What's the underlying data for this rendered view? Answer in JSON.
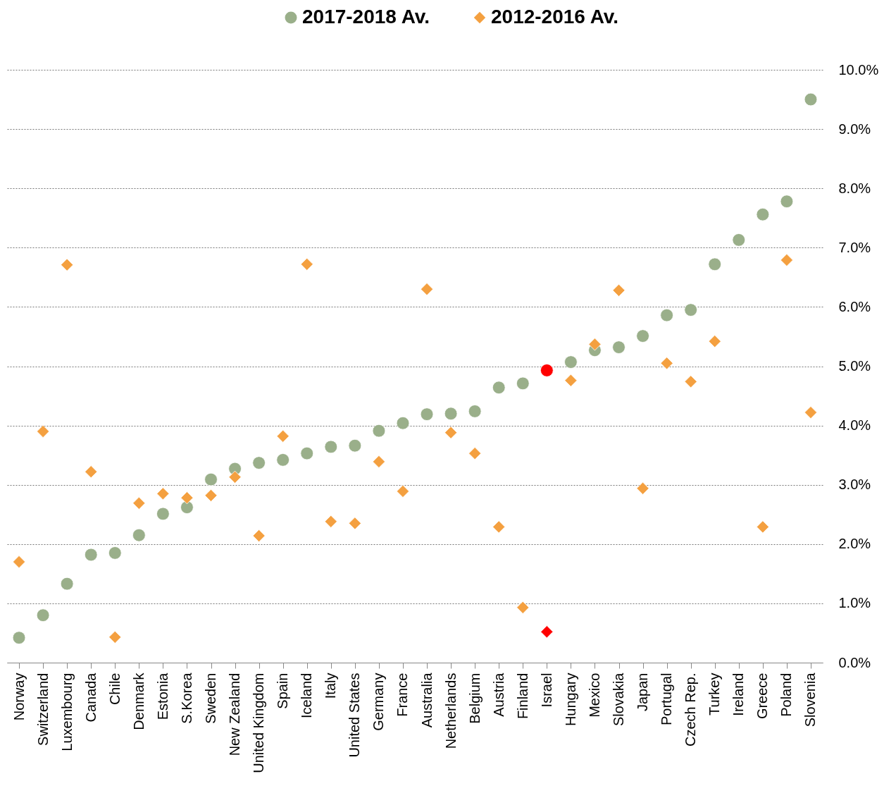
{
  "chart_data": {
    "type": "scatter",
    "categories": [
      "Norway",
      "Switzerland",
      "Luxembourg",
      "Canada",
      "Chile",
      "Denmark",
      "Estonia",
      "S.Korea",
      "Sweden",
      "New Zealand",
      "United Kingdom",
      "Spain",
      "Iceland",
      "Italy",
      "United States",
      "Germany",
      "France",
      "Australia",
      "Netherlands",
      "Belgium",
      "Austria",
      "Finland",
      "Israel",
      "Hungary",
      "Mexico",
      "Slovakia",
      "Japan",
      "Portugal",
      "Czech Rep.",
      "Turkey",
      "Ireland",
      "Greece",
      "Poland",
      "Slovenia"
    ],
    "series": [
      {
        "name": "2017-2018 Av.",
        "color": "#9aaf8a",
        "marker": "circle",
        "colors": [
          "#9aaf8a",
          "#9aaf8a",
          "#9aaf8a",
          "#9aaf8a",
          "#9aaf8a",
          "#9aaf8a",
          "#9aaf8a",
          "#9aaf8a",
          "#9aaf8a",
          "#9aaf8a",
          "#9aaf8a",
          "#9aaf8a",
          "#9aaf8a",
          "#9aaf8a",
          "#9aaf8a",
          "#9aaf8a",
          "#9aaf8a",
          "#9aaf8a",
          "#9aaf8a",
          "#9aaf8a",
          "#9aaf8a",
          "#9aaf8a",
          "#ff0000",
          "#9aaf8a",
          "#9aaf8a",
          "#9aaf8a",
          "#9aaf8a",
          "#9aaf8a",
          "#9aaf8a",
          "#9aaf8a",
          "#9aaf8a",
          "#9aaf8a",
          "#9aaf8a",
          "#9aaf8a"
        ],
        "values": [
          0.42,
          0.8,
          1.33,
          1.82,
          1.85,
          2.15,
          2.51,
          2.62,
          3.09,
          3.27,
          3.37,
          3.42,
          3.53,
          3.64,
          3.66,
          3.91,
          4.04,
          4.19,
          4.2,
          4.24,
          4.64,
          4.71,
          4.93,
          5.07,
          5.27,
          5.32,
          5.51,
          5.86,
          5.95,
          6.72,
          7.13,
          7.56,
          7.78,
          9.5
        ]
      },
      {
        "name": "2012-2016 Av.",
        "color": "#f4a040",
        "marker": "diamond",
        "colors": [
          "#f4a040",
          "#f4a040",
          "#f4a040",
          "#f4a040",
          "#f4a040",
          "#f4a040",
          "#f4a040",
          "#f4a040",
          "#f4a040",
          "#f4a040",
          "#f4a040",
          "#f4a040",
          "#f4a040",
          "#f4a040",
          "#f4a040",
          "#f4a040",
          "#f4a040",
          "#f4a040",
          "#f4a040",
          "#f4a040",
          "#f4a040",
          "#f4a040",
          "#ff0000",
          "#f4a040",
          "#f4a040",
          "#f4a040",
          "#f4a040",
          "#f4a040",
          "#f4a040",
          "#f4a040",
          "#f4a040",
          "#f4a040",
          "#f4a040",
          "#f4a040"
        ],
        "values": [
          1.7,
          3.9,
          6.71,
          3.22,
          0.43,
          2.69,
          2.85,
          2.78,
          2.82,
          3.13,
          2.14,
          3.82,
          6.72,
          2.38,
          2.35,
          3.39,
          2.89,
          6.3,
          3.88,
          3.53,
          2.29,
          0.93,
          0.52,
          4.76,
          5.37,
          6.28,
          2.94,
          5.05,
          4.74,
          5.42,
          null,
          2.29,
          6.79,
          4.22
        ]
      }
    ],
    "ylim": [
      0,
      10
    ],
    "yticks": [
      {
        "value": 0,
        "label": "0.0%"
      },
      {
        "value": 1,
        "label": "1.0%"
      },
      {
        "value": 2,
        "label": "2.0%"
      },
      {
        "value": 3,
        "label": "3.0%"
      },
      {
        "value": 4,
        "label": "4.0%"
      },
      {
        "value": 5,
        "label": "5.0%"
      },
      {
        "value": 6,
        "label": "6.0%"
      },
      {
        "value": 7,
        "label": "7.0%"
      },
      {
        "value": 8,
        "label": "8.0%"
      },
      {
        "value": 9,
        "label": "9.0%"
      },
      {
        "value": 10,
        "label": "10.0%"
      }
    ],
    "grid": "y",
    "legend": "top"
  }
}
